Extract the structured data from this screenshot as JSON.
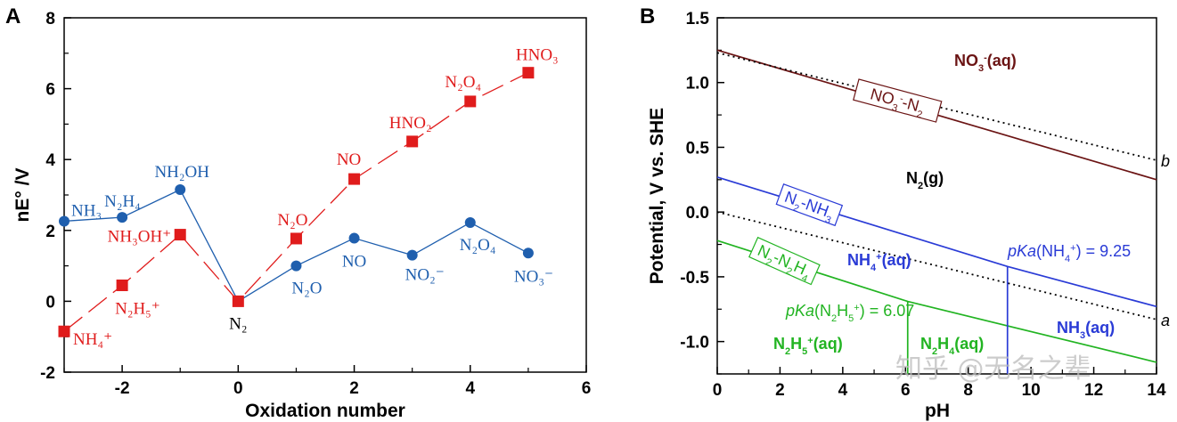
{
  "watermark": "知乎 @无名之辈",
  "colors": {
    "blue": "#1f5fae",
    "red": "#e01c1c",
    "nitrate": "#6b1414",
    "ammonia": "#2a3bd6",
    "hydrazine": "#22b422"
  },
  "chart_data": [
    {
      "panel": "A",
      "type": "line",
      "title": "",
      "xlabel": "Oxidation number",
      "ylabel": "nE° /V",
      "xlim": [
        -3,
        6
      ],
      "ylim": [
        -2,
        8
      ],
      "xticks": [
        "-2",
        "0",
        "2",
        "4",
        "6"
      ],
      "yticks": [
        "-2",
        "0",
        "2",
        "4",
        "6",
        "8"
      ],
      "series": [
        {
          "color": "#1f5fae",
          "marker": "circle",
          "line": "solid",
          "x": [
            -3,
            -2,
            -1,
            0,
            1,
            2,
            3,
            4,
            5
          ],
          "y": [
            2.26,
            2.37,
            3.15,
            0,
            1.0,
            1.78,
            1.3,
            2.22,
            1.36
          ],
          "labels": [
            "NH₃",
            "N₂H₄",
            "NH₂OH",
            "N₂",
            "N₂O",
            "NO",
            "NO₂⁻",
            "N₂O₄",
            "NO₃⁻"
          ]
        },
        {
          "color": "#e01c1c",
          "marker": "square",
          "line": "dashed",
          "x": [
            -3,
            -2,
            -1,
            0,
            1,
            2,
            3,
            4,
            5
          ],
          "y": [
            -0.85,
            0.45,
            1.88,
            0,
            1.77,
            3.45,
            4.51,
            5.64,
            6.45
          ],
          "labels": [
            "NH₄⁺",
            "N₂H₅⁺",
            "NH₃OH⁺",
            "",
            "N₂O",
            "NO",
            "HNO₂",
            "N₂O₄",
            "HNO₃"
          ]
        }
      ]
    },
    {
      "panel": "B",
      "type": "line",
      "title": "",
      "xlabel": "pH",
      "ylabel": "Potential, V vs. SHE",
      "xlim": [
        0,
        14
      ],
      "ylim": [
        -1.25,
        1.5
      ],
      "xticks": [
        "0",
        "2",
        "4",
        "6",
        "8",
        "10",
        "12",
        "14"
      ],
      "yticks": [
        "-1.0",
        "-0.5",
        "0.0",
        "0.5",
        "1.0",
        "1.5"
      ],
      "series": [
        {
          "color": "#6b1414",
          "line": "solid",
          "x": [
            0,
            14
          ],
          "y": [
            1.25,
            0.25
          ],
          "label": "NO3⁻-N2"
        },
        {
          "color": "#2a3bd6",
          "line": "solid",
          "x": [
            0,
            9.25,
            14
          ],
          "y": [
            0.27,
            -0.42,
            -0.73
          ],
          "label": "N2-NH3"
        },
        {
          "color": "#22b422",
          "line": "solid",
          "x": [
            0,
            6.07,
            14
          ],
          "y": [
            -0.22,
            -0.69,
            -1.16
          ],
          "label": "N2-N2H4"
        },
        {
          "color": "#000000",
          "line": "dotted",
          "x": [
            0,
            14
          ],
          "y": [
            1.23,
            0.4
          ],
          "label": "b"
        },
        {
          "color": "#000000",
          "line": "dotted",
          "x": [
            0,
            14
          ],
          "y": [
            0.0,
            -0.83
          ],
          "label": "a"
        }
      ],
      "verticals": [
        {
          "color": "#2a3bd6",
          "x": 9.25,
          "y": [
            -1.25,
            -0.42
          ]
        },
        {
          "color": "#22b422",
          "x": 6.07,
          "y": [
            -1.25,
            -0.69
          ]
        }
      ],
      "regions": [
        "NO₃⁻(aq)",
        "N₂(g)",
        "NH₄⁺(aq)",
        "NH₃(aq)",
        "N₂H₅⁺(aq)",
        "N₂H₄(aq)"
      ],
      "annotations": [
        "pKa(NH₄⁺) = 9.25",
        "pKa(N₂H₅⁺) = 6.07"
      ]
    }
  ]
}
